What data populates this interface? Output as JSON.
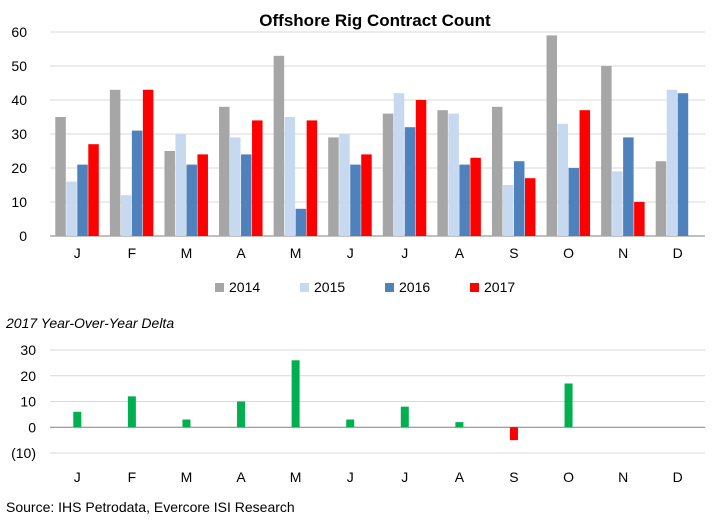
{
  "source": "Source: IHS Petrodata, Evercore ISI Research",
  "colors": {
    "s2014": "#a6a6a6",
    "s2015": "#c6d9f1",
    "s2016": "#4f81bd",
    "s2017": "#ff0000",
    "delta": "#00b050",
    "delta_negative": "#ff0000",
    "axis": "#808080"
  },
  "chart_data": [
    {
      "type": "bar",
      "title": "Offshore Rig Contract Count",
      "categories": [
        "J",
        "F",
        "M",
        "A",
        "M",
        "J",
        "J",
        "A",
        "S",
        "O",
        "N",
        "D"
      ],
      "series": [
        {
          "name": "2014",
          "values": [
            35,
            43,
            25,
            38,
            53,
            29,
            36,
            37,
            38,
            59,
            50,
            22
          ]
        },
        {
          "name": "2015",
          "values": [
            16,
            12,
            30,
            29,
            35,
            30,
            42,
            36,
            15,
            33,
            19,
            43
          ]
        },
        {
          "name": "2016",
          "values": [
            21,
            31,
            21,
            24,
            8,
            21,
            32,
            21,
            22,
            20,
            29,
            42
          ]
        },
        {
          "name": "2017",
          "values": [
            27,
            43,
            24,
            34,
            34,
            24,
            40,
            23,
            17,
            37,
            10,
            null
          ]
        }
      ],
      "ylim": [
        0,
        60
      ],
      "yticks": [
        0,
        10,
        20,
        30,
        40,
        50,
        60
      ],
      "ytick_labels": [
        "0",
        "10",
        "20",
        "30",
        "40",
        "50",
        "60"
      ],
      "xlabel": "",
      "ylabel": "",
      "legend": "bottom"
    },
    {
      "type": "bar",
      "title": "2017 Year-Over-Year Delta",
      "categories": [
        "J",
        "F",
        "M",
        "A",
        "M",
        "J",
        "J",
        "A",
        "S",
        "O",
        "N",
        "D"
      ],
      "values": [
        6,
        12,
        3,
        10,
        26,
        3,
        8,
        2,
        -5,
        17,
        null,
        null
      ],
      "ylim": [
        -10,
        30
      ],
      "yticks": [
        -10,
        0,
        10,
        20,
        30
      ],
      "ytick_labels": [
        "(10)",
        "0",
        "10",
        "20",
        "30"
      ],
      "xlabel": "",
      "ylabel": ""
    }
  ]
}
